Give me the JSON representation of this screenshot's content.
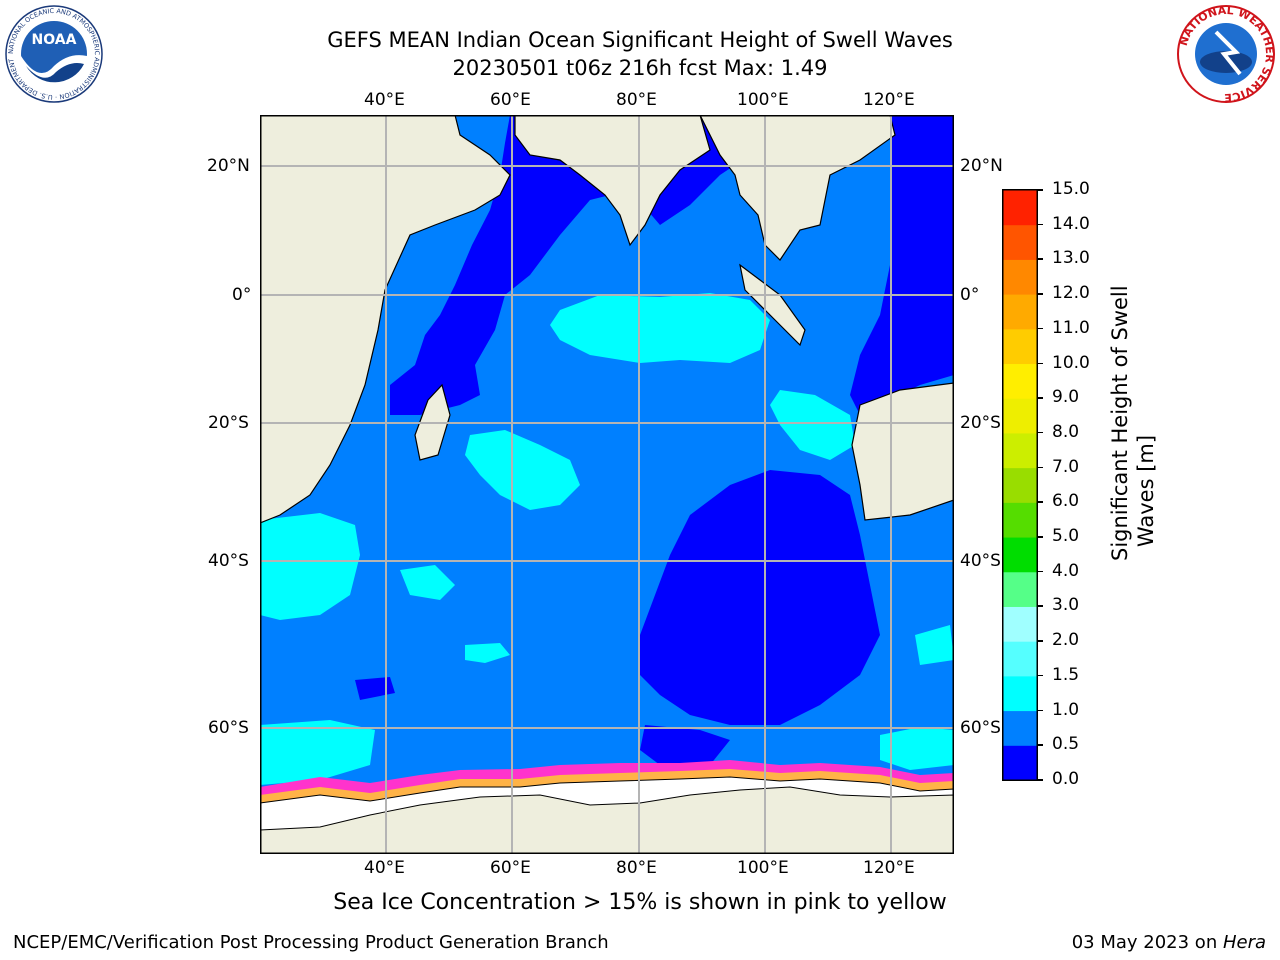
{
  "header": {
    "title_line1": "GEFS MEAN Indian Ocean Significant Height of Swell Waves",
    "title_line2": "20230501 t06z 216h fcst   Max: 1.49"
  },
  "logos": {
    "left_text": "NOAA",
    "left_ring_text": "NATIONAL OCEANIC AND ATMOSPHERIC ADMINISTRATION · U.S. DEPARTMENT OF COMMERCE",
    "right_ring_text": "NATIONAL WEATHER SERVICE"
  },
  "map": {
    "lon_ticks": [
      "40°E",
      "60°E",
      "80°E",
      "100°E",
      "120°E"
    ],
    "lat_ticks": [
      "20°N",
      "0°",
      "20°S",
      "40°S",
      "60°S"
    ],
    "colors": {
      "land": "#eeeedd",
      "ice": "#ffffff",
      "grid": "#b4b4b4"
    }
  },
  "colorbar": {
    "label_line1": "Significant Height of Swell",
    "label_line2": "Waves [m]",
    "ticks": [
      "0.0",
      "0.5",
      "1.0",
      "1.5",
      "2.0",
      "3.0",
      "4.0",
      "5.0",
      "6.0",
      "7.0",
      "8.0",
      "9.0",
      "10.0",
      "11.0",
      "12.0",
      "13.0",
      "14.0",
      "15.0"
    ],
    "colors": [
      "#0000ff",
      "#0080ff",
      "#00ffff",
      "#55ffff",
      "#a0ffff",
      "#55ff88",
      "#00dd00",
      "#55dd00",
      "#99dd00",
      "#ccee00",
      "#eeee00",
      "#ffee00",
      "#ffcc00",
      "#ffaa00",
      "#ff8800",
      "#ff5500",
      "#ff2200"
    ]
  },
  "caption": "Sea Ice Concentration > 15% is shown in pink to yellow",
  "footer": {
    "left": "NCEP/EMC/Verification Post Processing Product Generation Branch",
    "right_prefix": "03 May 2023 on ",
    "right_host": "Hera"
  }
}
